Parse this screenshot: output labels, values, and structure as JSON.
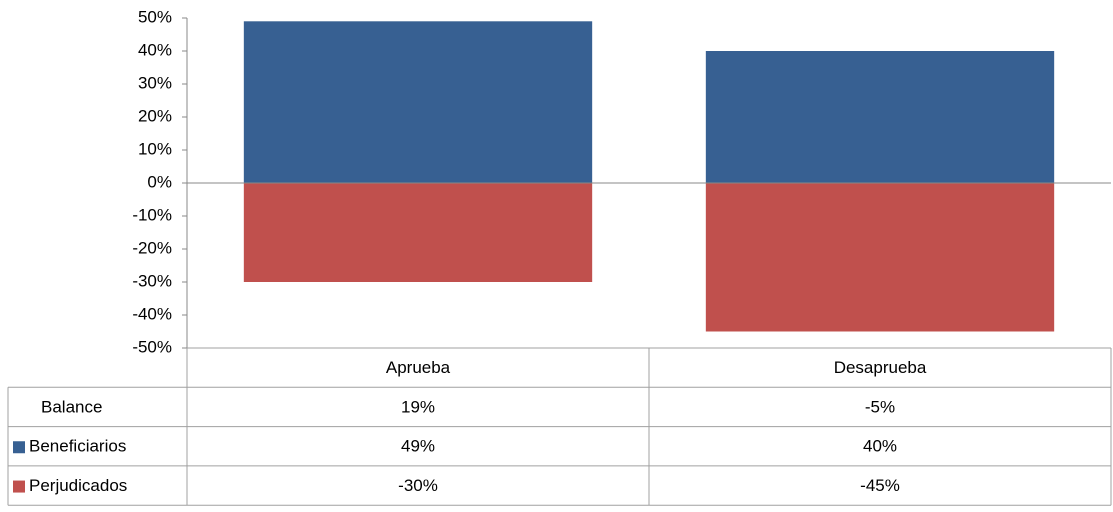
{
  "chart_data": {
    "type": "bar",
    "categories": [
      "Aprueba",
      "Desaprueba"
    ],
    "series": [
      {
        "name": "Balance",
        "values": [
          19,
          -5
        ],
        "value_labels": [
          "19%",
          "-5%"
        ]
      },
      {
        "name": "Beneficiarios",
        "color": "#376092",
        "values": [
          49,
          40
        ],
        "value_labels": [
          "49%",
          "40%"
        ]
      },
      {
        "name": "Perjudicados",
        "color": "#c0504d",
        "values": [
          -30,
          -45
        ],
        "value_labels": [
          "-30%",
          "-45%"
        ]
      }
    ],
    "ylim": [
      -50,
      50
    ],
    "yticks": [
      {
        "value": -50,
        "label": "-50%"
      },
      {
        "value": -40,
        "label": "-40%"
      },
      {
        "value": -30,
        "label": "-30%"
      },
      {
        "value": -20,
        "label": "-20%"
      },
      {
        "value": -10,
        "label": "-10%"
      },
      {
        "value": 0,
        "label": "0%"
      },
      {
        "value": 10,
        "label": "10%"
      },
      {
        "value": 20,
        "label": "20%"
      },
      {
        "value": 30,
        "label": "30%"
      },
      {
        "value": 40,
        "label": "40%"
      },
      {
        "value": 50,
        "label": "50%"
      }
    ]
  }
}
